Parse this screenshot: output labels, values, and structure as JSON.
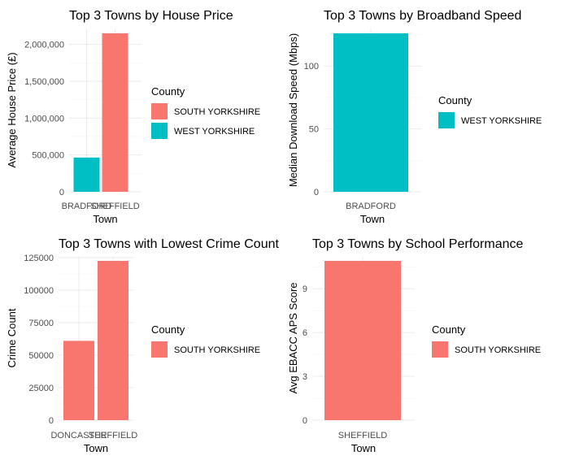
{
  "colors": {
    "south_yorkshire": "#F8766D",
    "west_yorkshire": "#00BFC4"
  },
  "chart_data": [
    {
      "type": "bar",
      "title": "Top 3 Towns by House Price",
      "xlabel": "Town",
      "ylabel": "Average House Price (£)",
      "categories": [
        "BRADFORD",
        "SHEFFIELD"
      ],
      "values": [
        465000,
        2150000
      ],
      "county": [
        "WEST YORKSHIRE",
        "SOUTH YORKSHIRE"
      ],
      "ylim": [
        0,
        2150000
      ],
      "yticks": [
        0,
        500000,
        1000000,
        1500000,
        2000000
      ],
      "ytick_labels": [
        "0",
        "500,000",
        "1,000,000",
        "1,500,000",
        "2,000,000"
      ],
      "grid": true,
      "legend": {
        "title": "County",
        "entries": [
          "SOUTH YORKSHIRE",
          "WEST YORKSHIRE"
        ],
        "position": "right"
      }
    },
    {
      "type": "bar",
      "title": "Top 3 Towns by Broadband Speed",
      "xlabel": "Town",
      "ylabel": "Median Download Speed (Mbps)",
      "categories": [
        "BRADFORD"
      ],
      "values": [
        126
      ],
      "county": [
        "WEST YORKSHIRE"
      ],
      "ylim": [
        0,
        126
      ],
      "yticks": [
        0,
        50,
        100
      ],
      "ytick_labels": [
        "0",
        "50",
        "100"
      ],
      "grid": true,
      "legend": {
        "title": "County",
        "entries": [
          "WEST YORKSHIRE"
        ],
        "position": "right"
      }
    },
    {
      "type": "bar",
      "title": "Top 3 Towns with Lowest Crime Count",
      "xlabel": "Town",
      "ylabel": "Crime Count",
      "categories": [
        "DONCASTER",
        "SHEFFIELD"
      ],
      "values": [
        61000,
        122500
      ],
      "county": [
        "SOUTH YORKSHIRE",
        "SOUTH YORKSHIRE"
      ],
      "ylim": [
        0,
        122500
      ],
      "yticks": [
        0,
        25000,
        50000,
        75000,
        100000,
        125000
      ],
      "ytick_labels": [
        "0",
        "25000",
        "50000",
        "75000",
        "100000",
        "125000"
      ],
      "grid": true,
      "legend": {
        "title": "County",
        "entries": [
          "SOUTH YORKSHIRE"
        ],
        "position": "right"
      }
    },
    {
      "type": "bar",
      "title": "Top 3 Towns by School Performance",
      "xlabel": "Town",
      "ylabel": "Avg EBACC APS Score",
      "categories": [
        "SHEFFIELD"
      ],
      "values": [
        10.9
      ],
      "county": [
        "SOUTH YORKSHIRE"
      ],
      "ylim": [
        0,
        10.9
      ],
      "yticks": [
        0,
        3,
        6,
        9
      ],
      "ytick_labels": [
        "0",
        "3",
        "6",
        "9"
      ],
      "grid": true,
      "legend": {
        "title": "County",
        "entries": [
          "SOUTH YORKSHIRE"
        ],
        "position": "right"
      }
    }
  ]
}
